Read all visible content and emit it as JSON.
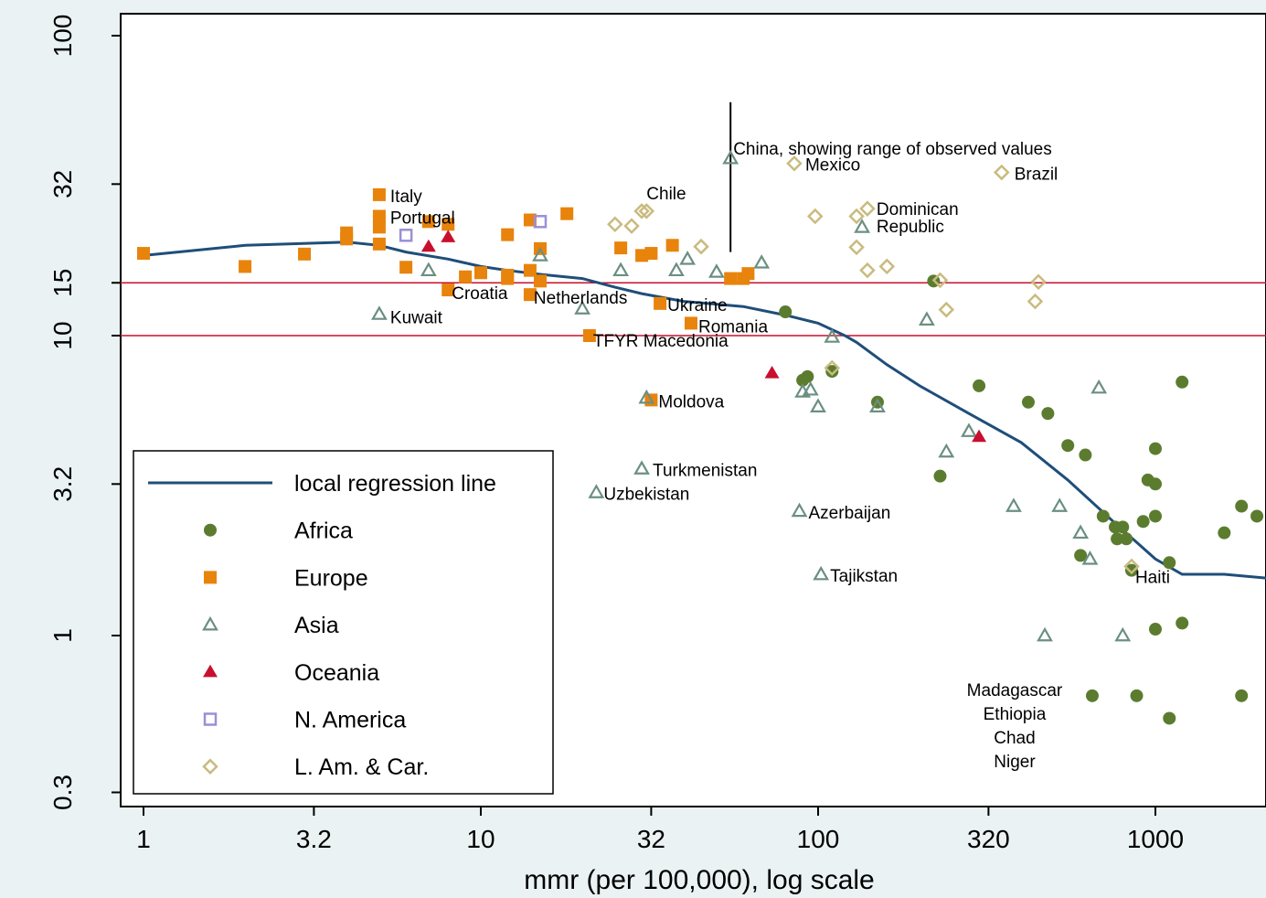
{
  "chart_data": {
    "type": "scatter",
    "xlabel": "mmr (per 100,000), log scale",
    "ylabel": "",
    "x_scale": "log",
    "y_scale": "log",
    "xlim": [
      0.9,
      2800
    ],
    "ylim": [
      0.27,
      120
    ],
    "x_ticks": [
      {
        "value": 1,
        "label": "1"
      },
      {
        "value": 3.2,
        "label": "3.2"
      },
      {
        "value": 10,
        "label": "10"
      },
      {
        "value": 32,
        "label": "32"
      },
      {
        "value": 100,
        "label": "100"
      },
      {
        "value": 320,
        "label": "320"
      },
      {
        "value": 1000,
        "label": "1000"
      }
    ],
    "y_ticks": [
      {
        "value": 0.3,
        "label": "0.3"
      },
      {
        "value": 1,
        "label": "1"
      },
      {
        "value": 3.2,
        "label": "3.2"
      },
      {
        "value": 10,
        "label": "10"
      },
      {
        "value": 15,
        "label": "15"
      },
      {
        "value": 32,
        "label": "32"
      },
      {
        "value": 100,
        "label": "100"
      }
    ],
    "reference_lines": {
      "y": [
        10,
        15
      ],
      "color": "#c8102e"
    },
    "regression_line": {
      "name": "local regression line",
      "color": "#1f4e79",
      "points": [
        [
          1,
          18.5
        ],
        [
          2,
          20
        ],
        [
          4,
          20.5
        ],
        [
          5,
          20
        ],
        [
          6,
          19
        ],
        [
          8,
          18
        ],
        [
          10,
          17
        ],
        [
          12,
          16.5
        ],
        [
          15,
          16
        ],
        [
          20,
          15.5
        ],
        [
          25,
          14.5
        ],
        [
          30,
          13.8
        ],
        [
          40,
          13
        ],
        [
          60,
          12.5
        ],
        [
          80,
          11.7
        ],
        [
          100,
          11
        ],
        [
          120,
          10
        ],
        [
          130,
          9.5
        ],
        [
          160,
          8
        ],
        [
          200,
          6.8
        ],
        [
          280,
          5.5
        ],
        [
          400,
          4.4
        ],
        [
          550,
          3.3
        ],
        [
          750,
          2.4
        ],
        [
          1000,
          1.8
        ],
        [
          1200,
          1.6
        ],
        [
          1600,
          1.6
        ],
        [
          2500,
          1.53
        ]
      ]
    },
    "range_bar": {
      "x": 55,
      "y_low": 19,
      "y_high": 60
    },
    "series": [
      {
        "name": "Africa",
        "marker": "circle",
        "color": "#5b7c2f",
        "points": [
          [
            220,
            15.2
          ],
          [
            80,
            12
          ],
          [
            90,
            7.1
          ],
          [
            93,
            7.3
          ],
          [
            110,
            7.6
          ],
          [
            150,
            6
          ],
          [
            300,
            6.8
          ],
          [
            420,
            6
          ],
          [
            480,
            5.5
          ],
          [
            550,
            4.3
          ],
          [
            620,
            4
          ],
          [
            230,
            3.4
          ],
          [
            700,
            2.5
          ],
          [
            760,
            2.3
          ],
          [
            770,
            2.1
          ],
          [
            800,
            2.3
          ],
          [
            820,
            2.1
          ],
          [
            600,
            1.85
          ],
          [
            850,
            1.65
          ],
          [
            920,
            2.4
          ],
          [
            950,
            3.3
          ],
          [
            1000,
            4.2
          ],
          [
            1000,
            3.2
          ],
          [
            1000,
            2.5
          ],
          [
            1100,
            1.75
          ],
          [
            1200,
            7
          ],
          [
            1600,
            2.2
          ],
          [
            1800,
            2.7
          ],
          [
            2000,
            2.5
          ],
          [
            1000,
            1.05
          ],
          [
            1200,
            1.1
          ],
          [
            650,
            0.63
          ],
          [
            880,
            0.63
          ],
          [
            1800,
            0.63
          ],
          [
            1100,
            0.53
          ]
        ]
      },
      {
        "name": "Europe",
        "marker": "square",
        "color": "#e8830c",
        "points": [
          [
            5,
            29.5
          ],
          [
            5,
            25
          ],
          [
            1,
            18.8
          ],
          [
            2,
            17
          ],
          [
            3,
            18.7
          ],
          [
            4,
            22
          ],
          [
            4,
            21
          ],
          [
            5,
            20.2
          ],
          [
            5,
            23
          ],
          [
            6,
            16.9
          ],
          [
            7,
            24
          ],
          [
            8,
            23.5
          ],
          [
            9,
            15.7
          ],
          [
            10,
            16.2
          ],
          [
            12,
            15.5
          ],
          [
            12,
            15.9
          ],
          [
            12,
            21.7
          ],
          [
            14,
            16.5
          ],
          [
            14,
            24.3
          ],
          [
            15,
            15.2
          ],
          [
            15,
            19.5
          ],
          [
            18,
            25.5
          ],
          [
            26,
            19.6
          ],
          [
            30,
            18.5
          ],
          [
            32,
            18.8
          ],
          [
            34,
            12.8
          ],
          [
            37,
            20
          ],
          [
            55,
            15.5
          ],
          [
            60,
            15.5
          ],
          [
            62,
            16.1
          ],
          [
            8,
            14.2
          ],
          [
            14,
            13.7
          ],
          [
            21,
            10
          ],
          [
            32,
            6.1
          ],
          [
            42,
            11
          ]
        ]
      },
      {
        "name": "Asia",
        "marker": "triangle",
        "color": "#6b8f82",
        "points": [
          [
            5,
            11.8
          ],
          [
            7,
            16.5
          ],
          [
            15,
            18.5
          ],
          [
            20,
            12.3
          ],
          [
            26,
            16.5
          ],
          [
            38,
            16.5
          ],
          [
            41,
            18
          ],
          [
            50,
            16.3
          ],
          [
            55,
            39
          ],
          [
            68,
            17.5
          ],
          [
            95,
            6.6
          ],
          [
            90,
            6.5
          ],
          [
            100,
            5.8
          ],
          [
            135,
            23
          ],
          [
            110,
            9.9
          ],
          [
            150,
            5.8
          ],
          [
            210,
            11.3
          ],
          [
            240,
            4.1
          ],
          [
            280,
            4.8
          ],
          [
            380,
            2.7
          ],
          [
            520,
            2.7
          ],
          [
            470,
            1
          ],
          [
            640,
            1.8
          ],
          [
            680,
            6.7
          ],
          [
            600,
            2.2
          ],
          [
            800,
            1
          ],
          [
            30,
            3.6
          ],
          [
            31,
            6.2
          ],
          [
            22,
            3.0
          ],
          [
            102,
            1.6
          ],
          [
            88,
            2.6
          ]
        ]
      },
      {
        "name": "Oceania",
        "marker": "triangle-filled",
        "color": "#c8102e",
        "points": [
          [
            7,
            19.8
          ],
          [
            8,
            21.3
          ],
          [
            73,
            7.5
          ],
          [
            300,
            4.6
          ]
        ]
      },
      {
        "name": "N. America",
        "marker": "square-open",
        "color": "#9b8fd6",
        "points": [
          [
            6,
            21.6
          ],
          [
            15,
            24
          ]
        ]
      },
      {
        "name": "L. Am. & Car.",
        "marker": "diamond",
        "color": "#c9bb7f",
        "points": [
          [
            28,
            23.2
          ],
          [
            30,
            26
          ],
          [
            31,
            26
          ],
          [
            25,
            23.5
          ],
          [
            45,
            19.8
          ],
          [
            85,
            37.5
          ],
          [
            98,
            25
          ],
          [
            130,
            25
          ],
          [
            130,
            19.7
          ],
          [
            140,
            16.5
          ],
          [
            140,
            26.5
          ],
          [
            160,
            17
          ],
          [
            230,
            15.3
          ],
          [
            240,
            12.2
          ],
          [
            450,
            15.1
          ],
          [
            440,
            13
          ],
          [
            350,
            35
          ],
          [
            110,
            7.8
          ],
          [
            850,
            1.7
          ]
        ]
      }
    ],
    "annotations": [
      {
        "text": "Italy",
        "x": 5,
        "y": 29.5
      },
      {
        "text": "Portugal",
        "x": 5,
        "y": 25
      },
      {
        "text": "Kuwait",
        "x": 5,
        "y": 11.8
      },
      {
        "text": "Croatia",
        "x": 8,
        "y": 14.2
      },
      {
        "text": "Netherlands",
        "x": 14,
        "y": 13.7
      },
      {
        "text": "Ukraine",
        "x": 34,
        "y": 12.8
      },
      {
        "text": "Romania",
        "x": 42,
        "y": 11
      },
      {
        "text": "TFYR Macedonia",
        "x": 21,
        "y": 10
      },
      {
        "text": "Moldova",
        "x": 32,
        "y": 6.1
      },
      {
        "text": "Turkmenistan",
        "x": 30,
        "y": 3.6
      },
      {
        "text": "Uzbekistan",
        "x": 22,
        "y": 3.0
      },
      {
        "text": "Azerbaijan",
        "x": 88,
        "y": 2.6
      },
      {
        "text": "Tajikstan",
        "x": 102,
        "y": 1.6
      },
      {
        "text": "Chile",
        "x": 31,
        "y": 26
      },
      {
        "text": "China, showing range of observed values",
        "x": 55,
        "y": 39
      },
      {
        "text": "Mexico",
        "x": 85,
        "y": 37.5
      },
      {
        "text": "Dominican",
        "x": 140,
        "y": 26.5
      },
      {
        "text": "Republic",
        "x": 140,
        "y": 26.5
      },
      {
        "text": "Brazil",
        "x": 350,
        "y": 35
      },
      {
        "text": "Haiti",
        "x": 850,
        "y": 1.7
      },
      {
        "text": "Madagascar",
        "x": 650,
        "y": 0.63
      },
      {
        "text": "Ethiopia",
        "x": 650,
        "y": 0.63
      },
      {
        "text": "Chad",
        "x": 650,
        "y": 0.63
      },
      {
        "text": "Niger",
        "x": 650,
        "y": 0.63
      }
    ],
    "legend": {
      "position": "bottom-left",
      "entries": [
        {
          "label": "local regression line",
          "marker": "line",
          "color": "#1f4e79"
        },
        {
          "label": "Africa",
          "marker": "circle",
          "color": "#5b7c2f"
        },
        {
          "label": "Europe",
          "marker": "square",
          "color": "#e8830c"
        },
        {
          "label": "Asia",
          "marker": "triangle",
          "color": "#6b8f82"
        },
        {
          "label": "Oceania",
          "marker": "triangle-filled",
          "color": "#c8102e"
        },
        {
          "label": "N. America",
          "marker": "square-open",
          "color": "#9b8fd6"
        },
        {
          "label": "L. Am. & Car.",
          "marker": "diamond",
          "color": "#c9bb7f"
        }
      ]
    },
    "grid": false
  }
}
